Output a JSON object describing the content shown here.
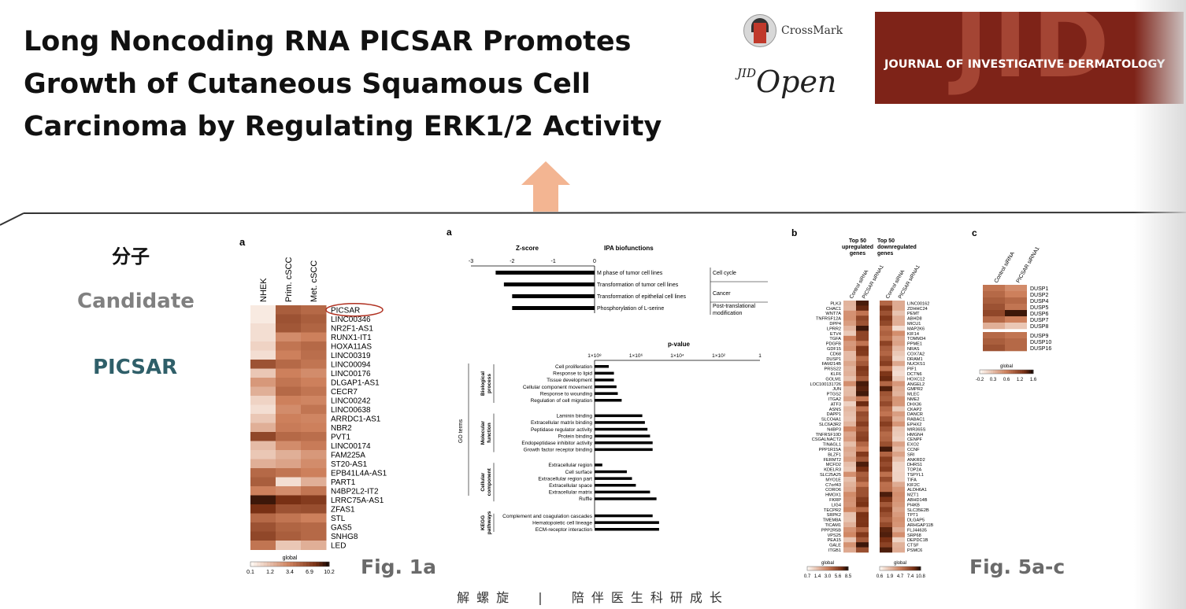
{
  "slide": {
    "title_lines": [
      "Long Noncoding RNA PICSAR Promotes",
      "Growth of Cutaneous Squamous Cell",
      "Carcinoma by Regulating ERK1/2 Activity"
    ],
    "crossmark_label": "CrossMark",
    "jid_open_sup": "JID",
    "jid_open_main": "Open",
    "journal_logo_big": "JID",
    "journal_logo_text": "JOURNAL OF INVESTIGATIVE DERMATOLOGY",
    "left_labels": {
      "molecule": "分子",
      "candidate": "Candidate",
      "picsar": "PICSAR"
    },
    "fig1_caption": "Fig. 1a",
    "fig5_caption": "Fig. 5a-c",
    "footer": "解螺旋  |  陪伴医生科研成长",
    "colors": {
      "accent_arrow": "#f3b592",
      "journal_bg": "#7e2318",
      "picsar_label": "#2f5f69"
    }
  },
  "fig1a": {
    "panel_label": "a",
    "columns": [
      "NHEK",
      "Prim. cSCC",
      "Met. cSCC"
    ],
    "genes": [
      "PICSAR",
      "LINC00346",
      "NR2F1-AS1",
      "RUNX1-IT1",
      "HOXA11AS",
      "LINC00319",
      "LINC00094",
      "LINC00176",
      "DLGAP1-AS1",
      "CECR7",
      "LINC00242",
      "LINC00638",
      "ARRDC1-AS1",
      "NBR2",
      "PVT1",
      "LINC00174",
      "FAM225A",
      "ST20-AS1",
      "EPB41L4A-AS1",
      "PART1",
      "N4BP2L2-IT2",
      "LRRC75A-AS1",
      "ZFAS1",
      "STL",
      "GAS5",
      "SNHG8",
      "LED"
    ],
    "highlight": "PICSAR",
    "values": [
      [
        0.05,
        0.65,
        0.6
      ],
      [
        0.05,
        0.7,
        0.65
      ],
      [
        0.1,
        0.68,
        0.62
      ],
      [
        0.1,
        0.45,
        0.5
      ],
      [
        0.15,
        0.55,
        0.6
      ],
      [
        0.1,
        0.5,
        0.58
      ],
      [
        0.7,
        0.6,
        0.55
      ],
      [
        0.2,
        0.5,
        0.45
      ],
      [
        0.4,
        0.55,
        0.5
      ],
      [
        0.3,
        0.6,
        0.55
      ],
      [
        0.15,
        0.5,
        0.48
      ],
      [
        0.1,
        0.45,
        0.55
      ],
      [
        0.2,
        0.5,
        0.48
      ],
      [
        0.3,
        0.52,
        0.5
      ],
      [
        0.75,
        0.6,
        0.58
      ],
      [
        0.25,
        0.45,
        0.52
      ],
      [
        0.2,
        0.3,
        0.4
      ],
      [
        0.3,
        0.35,
        0.45
      ],
      [
        0.6,
        0.55,
        0.5
      ],
      [
        0.65,
        0.1,
        0.3
      ],
      [
        0.5,
        0.45,
        0.55
      ],
      [
        0.95,
        0.85,
        0.8
      ],
      [
        0.85,
        0.7,
        0.72
      ],
      [
        0.6,
        0.55,
        0.5
      ],
      [
        0.7,
        0.62,
        0.6
      ],
      [
        0.75,
        0.65,
        0.6
      ],
      [
        0.55,
        0.2,
        0.3
      ]
    ],
    "legend_title": "global",
    "legend_ticks": [
      "0.1",
      "1.2",
      "3.4",
      "6.9",
      "10.2"
    ]
  },
  "fig5a": {
    "panel_label": "a",
    "zscore_title": "Z-score",
    "ipa_title": "IPA biofunctions",
    "zscore_ticks": [
      "-3",
      "-2",
      "-1",
      "0"
    ],
    "ipa_rows": [
      {
        "label": "M phase of tumor cell lines",
        "z": -2.4
      },
      {
        "label": "Transformation of tumor cell lines",
        "z": -2.2
      },
      {
        "label": "Transformation of epithelial cell lines",
        "z": -2.0
      },
      {
        "label": "Phosphorylation of L-serine",
        "z": -2.0
      }
    ],
    "ipa_groups": [
      "Cell cycle",
      "Cancer",
      "Post-translational",
      "modification"
    ],
    "pvalue_title": "p-value",
    "pvalue_ticks": [
      "1×10⁸",
      "1×10⁶",
      "1×10⁴",
      "1×10²",
      "1"
    ],
    "go_axis_label": "GO terms",
    "go_groups": [
      {
        "name": [
          "Biological",
          "process"
        ],
        "terms": [
          {
            "label": "Cell proliferation",
            "len": 0.11
          },
          {
            "label": "Response to lipid",
            "len": 0.15
          },
          {
            "label": "Tissue development",
            "len": 0.15
          },
          {
            "label": "Cellular component movement",
            "len": 0.17
          },
          {
            "label": "Response to wounding",
            "len": 0.18
          },
          {
            "label": "Regulation of cell migration",
            "len": 0.21
          }
        ]
      },
      {
        "name": [
          "Molecular",
          "function"
        ],
        "terms": [
          {
            "label": "Laminin binding",
            "len": 0.37
          },
          {
            "label": "Extracellular matrix binding",
            "len": 0.39
          },
          {
            "label": "Peptidase regulator activity",
            "len": 0.41
          },
          {
            "label": "Protein binding",
            "len": 0.43
          },
          {
            "label": "Endopeptidase inhibitor activity",
            "len": 0.45
          },
          {
            "label": "Growth factor receptor binding",
            "len": 0.45
          }
        ]
      },
      {
        "name": [
          "Cellular",
          "component"
        ],
        "terms": [
          {
            "label": "Extracellular region",
            "len": 0.06
          },
          {
            "label": "Cell surface",
            "len": 0.25
          },
          {
            "label": "Extracellular region part",
            "len": 0.29
          },
          {
            "label": "Extracellular space",
            "len": 0.32
          },
          {
            "label": "Extracellular matrix",
            "len": 0.43
          },
          {
            "label": "Ruffle",
            "len": 0.48
          }
        ]
      },
      {
        "name": [
          "KEGG",
          "pathways"
        ],
        "terms": [
          {
            "label": "Complement and coagulation cascades",
            "len": 0.45
          },
          {
            "label": "Hematopoietic cell lineage",
            "len": 0.5
          },
          {
            "label": "ECM-receptor interaction",
            "len": 0.5
          }
        ]
      }
    ]
  },
  "fig5b": {
    "panel_label": "b",
    "up_title": [
      "Top 50",
      "upregulated",
      "genes"
    ],
    "down_title": [
      "Top 50",
      "downregulated",
      "genes"
    ],
    "columns": [
      "Control siRNA",
      "PICSAR siRNA1"
    ],
    "up_genes": [
      "PLK3",
      "CHAC1",
      "WNT7A",
      "TNFRSF12A",
      "DPP4",
      "LPRR2",
      "ETV4",
      "TGFA",
      "PDGFB",
      "GDF15",
      "CD68",
      "DUSP1",
      "FAM214B",
      "PRSS22",
      "KLF6",
      "GOLM1",
      "LOC100131726",
      "JUN",
      "PTGS2",
      "ITGA2",
      "ATF3",
      "ASNS",
      "DAPP1",
      "SLCO4A1",
      "SLC6A3R2",
      "N4BP3",
      "TNFRSF10D",
      "CSGALNACT2",
      "TINAGL1",
      "PPP1R15A",
      "BLZF1",
      "FERMT2",
      "MCFD2",
      "KDELR3",
      "SLC25A25",
      "MYO1E",
      "C7orf43",
      "CORO6",
      "HMOX1",
      "FKRP",
      "LIG4",
      "TECPR2",
      "SRPK2",
      "TMEM8A",
      "TICAM1",
      "PPP2R5B",
      "VPS25",
      "PEA15",
      "GALE",
      "ITGB1"
    ],
    "down_genes": [
      "LINC00162",
      "ZDHHC24",
      "PEMT",
      "ABHD8",
      "MICU1",
      "MAP2K6",
      "KIF14",
      "TOMM34",
      "PPME1",
      "NRAS",
      "COX7A2",
      "DRAM1",
      "NUCKS1",
      "PIF1",
      "DCTN6",
      "HOXC12",
      "ANGEL2",
      "GMPR2",
      "MLEC",
      "NME2",
      "DHX36",
      "CKAP2",
      "DANCR",
      "RABAC1",
      "EPHX2",
      "MIR365S",
      "HMGN4",
      "CENPF",
      "EXO2",
      "CCNF",
      "SRI",
      "ANKRD2",
      "DHRS1",
      "TOP2A",
      "TSPYL1",
      "TIFA",
      "KIF2C",
      "ALDH6A1",
      "MZT1",
      "ABHD14B",
      "PI4KB",
      "SLC35E2B",
      "TPT1",
      "DLGAP5",
      "ARHGAP11B",
      "FLJ44635",
      "SRP68",
      "DEPDC1B",
      "CTSF",
      "PSMC6"
    ],
    "up_legend_ticks": [
      "0.7",
      "1.4",
      "3.0",
      "5.6",
      "8.5"
    ],
    "down_legend_ticks": [
      "0.6",
      "1.9",
      "4.7",
      "7.4",
      "10.8"
    ],
    "legend_title": "global"
  },
  "fig5c": {
    "panel_label": "c",
    "columns": [
      "Control siRNA",
      "PICSAR siRNA1"
    ],
    "genes": [
      "DUSP1",
      "DUSP2",
      "DUSP4",
      "DUSP5",
      "DUSP6",
      "DUSP7",
      "DUSP8",
      "DUSP9",
      "DUSP10",
      "DUSP16"
    ],
    "values": [
      [
        0.55,
        0.45
      ],
      [
        0.6,
        0.5
      ],
      [
        0.65,
        0.6
      ],
      [
        0.7,
        0.55
      ],
      [
        0.75,
        0.95
      ],
      [
        0.6,
        0.5
      ],
      [
        0.3,
        0.2
      ],
      [
        0.6,
        0.55
      ],
      [
        0.65,
        0.6
      ],
      [
        0.7,
        0.6
      ]
    ],
    "legend_title": "global",
    "legend_ticks": [
      "-0.2",
      "0.3",
      "0.6",
      "1.2",
      "1.6"
    ]
  }
}
